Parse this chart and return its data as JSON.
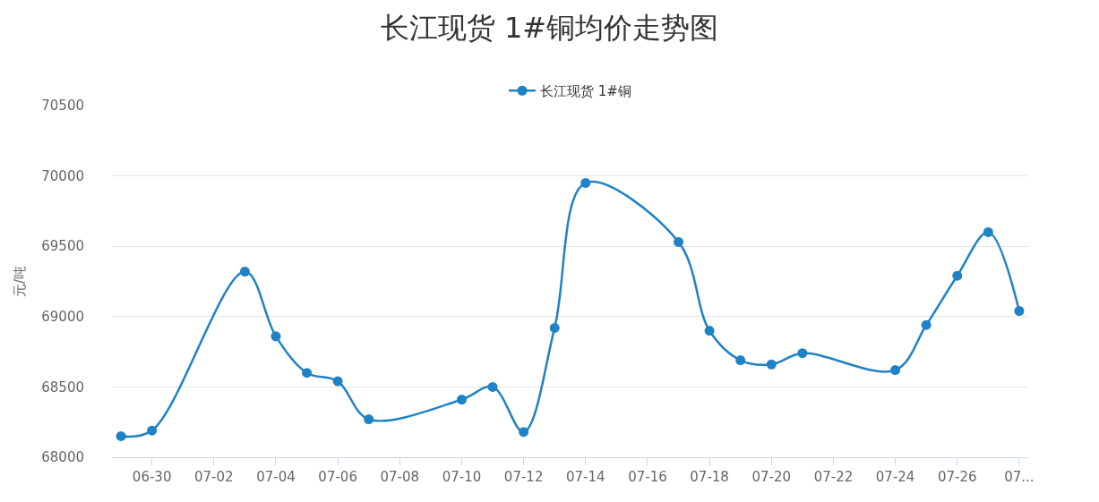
{
  "chart_data": {
    "type": "line",
    "title": "长江现货 1#铜均价走势图",
    "ylabel": "元/吨",
    "x": [
      "--06-29",
      "--06-30",
      "--07-03",
      "--07-04",
      "--07-05",
      "--07-06",
      "--07-07",
      "--07-10",
      "--07-11",
      "--07-12",
      "--07-13",
      "--07-14",
      "--07-17",
      "--07-18",
      "--07-19",
      "--07-20",
      "--07-21",
      "--07-24",
      "--07-25",
      "--07-26",
      "--07-27",
      "--07-28"
    ],
    "series": [
      {
        "name": "长江现货 1#铜",
        "color": "#1f82c5",
        "values": [
          68150,
          68190,
          69320,
          68860,
          68600,
          68540,
          68270,
          68410,
          68500,
          68180,
          68920,
          69950,
          69530,
          68900,
          68690,
          68660,
          68740,
          68620,
          68940,
          69290,
          69600,
          69040
        ]
      }
    ],
    "xlim": [
      "--06-28T17:00",
      "--07-28T07:00"
    ],
    "xticks": [
      {
        "value": "--06-30",
        "label": "06-30"
      },
      {
        "value": "--07-02",
        "label": "07-02"
      },
      {
        "value": "--07-04",
        "label": "07-04"
      },
      {
        "value": "--07-06",
        "label": "07-06"
      },
      {
        "value": "--07-08",
        "label": "07-08"
      },
      {
        "value": "--07-10",
        "label": "07-10"
      },
      {
        "value": "--07-12",
        "label": "07-12"
      },
      {
        "value": "--07-14",
        "label": "07-14"
      },
      {
        "value": "--07-16",
        "label": "07-16"
      },
      {
        "value": "--07-18",
        "label": "07-18"
      },
      {
        "value": "--07-20",
        "label": "07-20"
      },
      {
        "value": "--07-22",
        "label": "07-22"
      },
      {
        "value": "--07-24",
        "label": "07-24"
      },
      {
        "value": "--07-26",
        "label": "07-26"
      },
      {
        "value": "--07-28",
        "label": "07..."
      }
    ],
    "ylim": [
      68000,
      70500
    ],
    "yticks": [
      68000,
      68500,
      69000,
      69500,
      70000,
      70500
    ],
    "grid": "y",
    "legend": "top",
    "marker": "circle",
    "line_style": "solid"
  }
}
